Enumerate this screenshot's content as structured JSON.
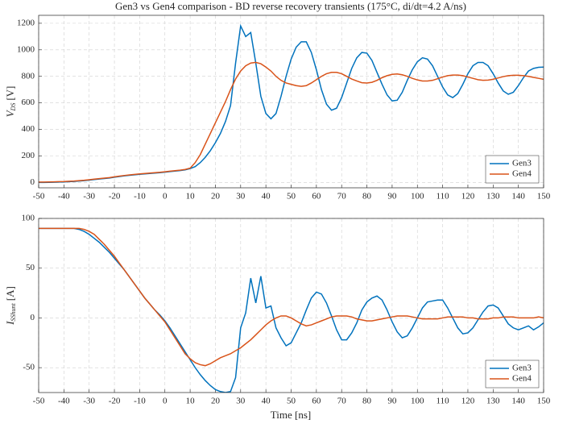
{
  "chart_data": [
    {
      "type": "line",
      "title": "Gen3 vs Gen4 comparison - BD reverse recovery transients (175°C, di/dt=4.2 A/ns)",
      "ylabel": "V",
      "ylabel_sub": "DS",
      "ylabel_unit": "[V]",
      "xlim": [
        -50,
        150
      ],
      "xticks": [
        -50,
        -40,
        -30,
        -20,
        -10,
        0,
        10,
        20,
        30,
        40,
        50,
        60,
        70,
        80,
        90,
        100,
        110,
        120,
        130,
        140,
        150
      ],
      "ylim": [
        -40,
        1260
      ],
      "yticks": [
        0,
        200,
        400,
        600,
        800,
        1000,
        1200
      ],
      "grid": true,
      "legend": "lower right",
      "x": [
        -50,
        -48,
        -46,
        -44,
        -42,
        -40,
        -38,
        -36,
        -34,
        -32,
        -30,
        -28,
        -26,
        -24,
        -22,
        -20,
        -18,
        -16,
        -14,
        -12,
        -10,
        -8,
        -6,
        -4,
        -2,
        0,
        2,
        4,
        6,
        8,
        10,
        12,
        14,
        16,
        18,
        20,
        22,
        24,
        26,
        28,
        30,
        32,
        34,
        36,
        38,
        40,
        42,
        44,
        46,
        48,
        50,
        52,
        54,
        56,
        58,
        60,
        62,
        64,
        66,
        68,
        70,
        72,
        74,
        76,
        78,
        80,
        82,
        84,
        86,
        88,
        90,
        92,
        94,
        96,
        98,
        100,
        102,
        104,
        106,
        108,
        110,
        112,
        114,
        116,
        118,
        120,
        122,
        124,
        126,
        128,
        130,
        132,
        134,
        136,
        138,
        140,
        142,
        144,
        146,
        148,
        150
      ],
      "series": [
        {
          "name": "Gen3",
          "color": "#0072BD",
          "values": [
            0,
            0,
            1,
            2,
            3,
            4,
            6,
            8,
            11,
            14,
            18,
            22,
            26,
            30,
            34,
            40,
            45,
            50,
            54,
            58,
            62,
            65,
            68,
            71,
            74,
            78,
            82,
            86,
            90,
            95,
            105,
            120,
            150,
            190,
            240,
            300,
            370,
            460,
            580,
            900,
            1180,
            1100,
            1130,
            900,
            650,
            520,
            480,
            520,
            650,
            800,
            930,
            1020,
            1060,
            1060,
            980,
            850,
            700,
            590,
            545,
            560,
            640,
            750,
            860,
            940,
            980,
            975,
            920,
            830,
            740,
            660,
            615,
            620,
            680,
            770,
            850,
            910,
            940,
            930,
            880,
            800,
            720,
            660,
            640,
            670,
            740,
            820,
            880,
            905,
            905,
            880,
            820,
            750,
            690,
            665,
            680,
            730,
            790,
            840,
            860,
            868,
            870
          ]
        },
        {
          "name": "Gen4",
          "color": "#D95319",
          "values": [
            3,
            3,
            4,
            5,
            6,
            7,
            9,
            11,
            14,
            17,
            21,
            25,
            29,
            33,
            37,
            43,
            48,
            53,
            57,
            61,
            65,
            68,
            71,
            74,
            77,
            81,
            85,
            89,
            93,
            98,
            108,
            150,
            210,
            290,
            370,
            450,
            530,
            610,
            700,
            780,
            840,
            880,
            900,
            905,
            895,
            870,
            840,
            800,
            770,
            750,
            740,
            730,
            725,
            730,
            750,
            775,
            800,
            820,
            830,
            830,
            820,
            800,
            780,
            765,
            752,
            750,
            755,
            770,
            790,
            805,
            815,
            818,
            812,
            800,
            785,
            773,
            765,
            765,
            770,
            782,
            795,
            805,
            810,
            810,
            805,
            795,
            785,
            775,
            770,
            772,
            778,
            788,
            798,
            805,
            808,
            808,
            805,
            800,
            792,
            785,
            778
          ]
        }
      ]
    },
    {
      "type": "line",
      "ylabel": "I",
      "ylabel_sub": "SShunt",
      "ylabel_unit": "[A]",
      "xlabel": "Time [ns]",
      "xlim": [
        -50,
        150
      ],
      "xticks": [
        -50,
        -40,
        -30,
        -20,
        -10,
        0,
        10,
        20,
        30,
        40,
        50,
        60,
        70,
        80,
        90,
        100,
        110,
        120,
        130,
        140,
        150
      ],
      "ylim": [
        -75,
        100
      ],
      "yticks": [
        -50,
        0,
        50,
        100
      ],
      "grid": true,
      "legend": "lower right",
      "x": [
        -50,
        -48,
        -46,
        -44,
        -42,
        -40,
        -38,
        -36,
        -34,
        -32,
        -30,
        -28,
        -26,
        -24,
        -22,
        -20,
        -18,
        -16,
        -14,
        -12,
        -10,
        -8,
        -6,
        -4,
        -2,
        0,
        2,
        4,
        6,
        8,
        10,
        12,
        14,
        16,
        18,
        20,
        22,
        24,
        26,
        28,
        30,
        32,
        34,
        36,
        38,
        40,
        42,
        44,
        46,
        48,
        50,
        52,
        54,
        56,
        58,
        60,
        62,
        64,
        66,
        68,
        70,
        72,
        74,
        76,
        78,
        80,
        82,
        84,
        86,
        88,
        90,
        92,
        94,
        96,
        98,
        100,
        102,
        104,
        106,
        108,
        110,
        112,
        114,
        116,
        118,
        120,
        122,
        124,
        126,
        128,
        130,
        132,
        134,
        136,
        138,
        140,
        142,
        144,
        146,
        148,
        150
      ],
      "series": [
        {
          "name": "Gen3",
          "color": "#0072BD",
          "values": [
            90,
            90,
            90,
            90,
            90,
            90,
            90,
            90,
            89,
            87,
            84,
            80,
            76,
            71,
            66,
            60,
            54,
            48,
            41,
            34,
            27,
            20,
            14,
            8,
            3,
            -3,
            -10,
            -18,
            -26,
            -34,
            -42,
            -50,
            -57,
            -63,
            -68,
            -72,
            -74,
            -75,
            -74,
            -60,
            -10,
            5,
            40,
            15,
            42,
            10,
            12,
            -10,
            -20,
            -28,
            -25,
            -15,
            -5,
            8,
            20,
            26,
            24,
            15,
            2,
            -12,
            -22,
            -22,
            -15,
            -5,
            8,
            16,
            20,
            22,
            18,
            8,
            -4,
            -14,
            -20,
            -18,
            -10,
            0,
            10,
            16,
            17,
            18,
            18,
            10,
            0,
            -10,
            -16,
            -15,
            -10,
            -2,
            6,
            12,
            13,
            10,
            2,
            -6,
            -10,
            -12,
            -10,
            -8,
            -12,
            -9,
            -5
          ]
        },
        {
          "name": "Gen4",
          "color": "#D95319",
          "values": [
            90,
            90,
            90,
            90,
            90,
            90,
            90,
            90,
            90,
            89,
            87,
            84,
            79,
            74,
            68,
            62,
            55,
            48,
            41,
            34,
            27,
            20,
            14,
            8,
            2,
            -4,
            -12,
            -20,
            -28,
            -36,
            -41,
            -45,
            -47,
            -48,
            -46,
            -43,
            -40,
            -38,
            -36,
            -33,
            -30,
            -26,
            -22,
            -17,
            -12,
            -7,
            -3,
            0,
            2,
            2,
            0,
            -3,
            -6,
            -8,
            -7,
            -5,
            -3,
            -1,
            1,
            2,
            2,
            2,
            1,
            -1,
            -2,
            -3,
            -3,
            -2,
            -1,
            0,
            1,
            2,
            2,
            2,
            1,
            0,
            -1,
            -1,
            -1,
            -1,
            0,
            1,
            1,
            1,
            1,
            0,
            0,
            -1,
            -1,
            -1,
            0,
            0,
            1,
            1,
            1,
            0,
            0,
            0,
            0,
            1,
            0
          ]
        }
      ]
    }
  ]
}
